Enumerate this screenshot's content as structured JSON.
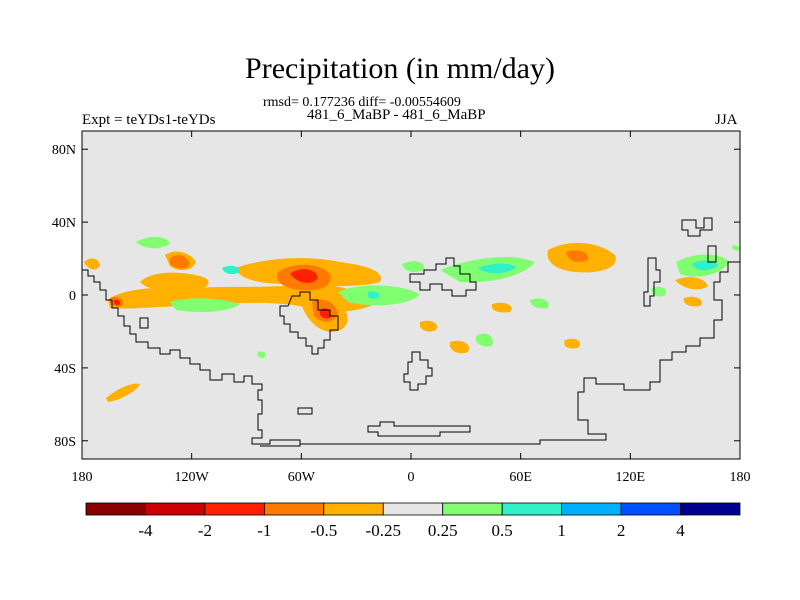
{
  "title": "Precipitation (in mm/day)",
  "stats": "rmsd= 0.177236 diff= -0.00554609",
  "subtitle": "481_6_MaBP - 481_6_MaBP",
  "left_label": "Expt = teYDs1-teYDs",
  "right_label": "JJA",
  "map": {
    "background_color": "#e6e6e6",
    "lat_range": [
      -90,
      90
    ],
    "lon_range": [
      -180,
      180
    ],
    "lat_ticks": [
      {
        "value": 80,
        "label": "80N"
      },
      {
        "value": 40,
        "label": "40N"
      },
      {
        "value": 0,
        "label": "0"
      },
      {
        "value": -40,
        "label": "40S"
      },
      {
        "value": -80,
        "label": "80S"
      }
    ],
    "lon_ticks": [
      {
        "value": -180,
        "label": "180"
      },
      {
        "value": -120,
        "label": "120W"
      },
      {
        "value": -60,
        "label": "60W"
      },
      {
        "value": 0,
        "label": "0"
      },
      {
        "value": 60,
        "label": "60E"
      },
      {
        "value": 120,
        "label": "120E"
      },
      {
        "value": 180,
        "label": "180"
      }
    ]
  },
  "colorbar": {
    "colors": [
      "#8b0000",
      "#cc0000",
      "#ff2000",
      "#ff7a00",
      "#ffb000",
      "#e6e6e6",
      "#80ff70",
      "#30f0c8",
      "#00b0ff",
      "#0050ff",
      "#000090"
    ],
    "labels": [
      "-4",
      "-2",
      "-1",
      "-0.5",
      "-0.25",
      "0.25",
      "0.5",
      "1",
      "2",
      "4"
    ]
  }
}
